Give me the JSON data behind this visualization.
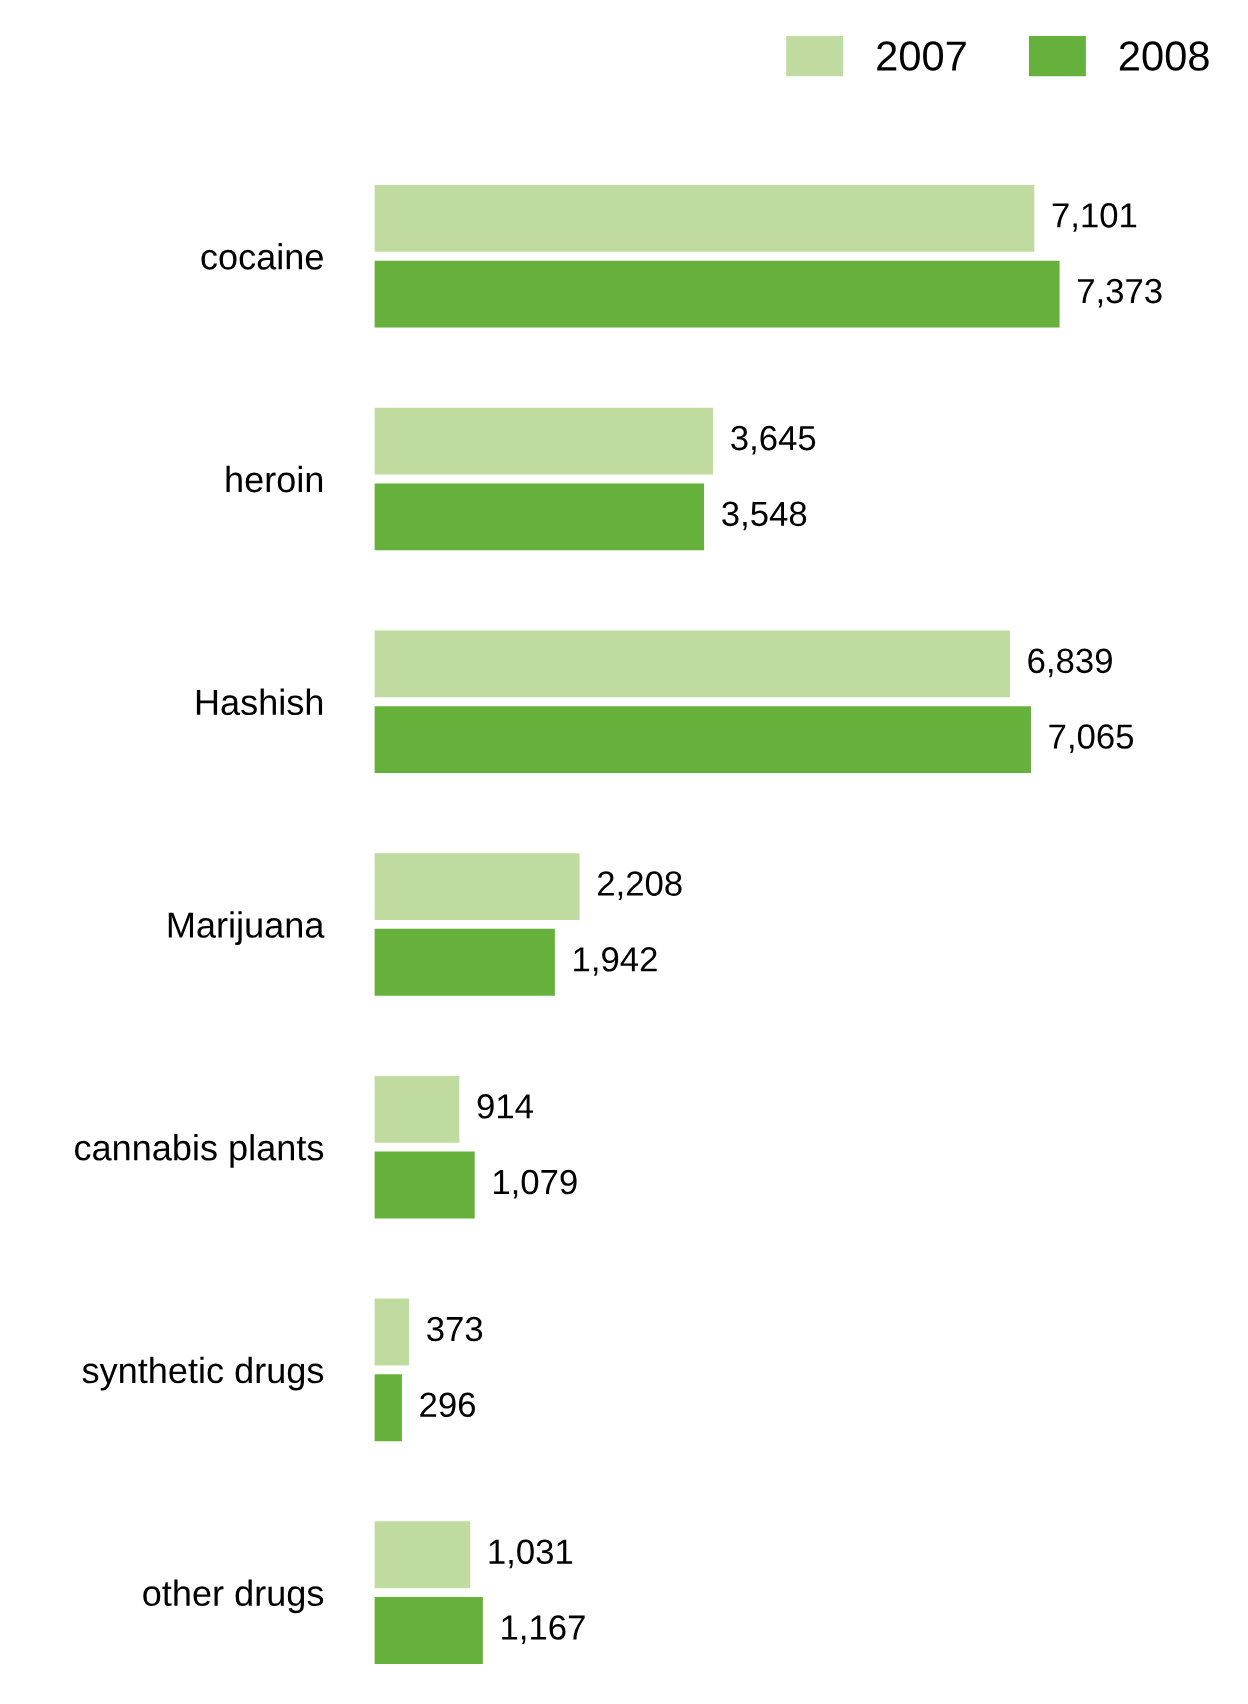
{
  "chart_data": {
    "type": "bar",
    "orientation": "horizontal",
    "categories": [
      "cocaine",
      "heroin",
      "Hashish",
      "Marijuana",
      "cannabis plants",
      "synthetic drugs",
      "other drugs"
    ],
    "series": [
      {
        "name": "2007",
        "color": "#c0dba0",
        "values": [
          7101,
          3645,
          6839,
          2208,
          914,
          373,
          1031
        ],
        "value_labels": [
          "7,101",
          "3,645",
          "6,839",
          "2,208",
          "914",
          "373",
          "1,031"
        ]
      },
      {
        "name": "2008",
        "color": "#66b03c",
        "values": [
          7373,
          3548,
          7065,
          1942,
          1079,
          296,
          1167
        ],
        "value_labels": [
          "7,373",
          "3,548",
          "7,065",
          "1,942",
          "1,079",
          "296",
          "1,167"
        ]
      }
    ],
    "legend": "top right",
    "tick_labels": "y"
  }
}
